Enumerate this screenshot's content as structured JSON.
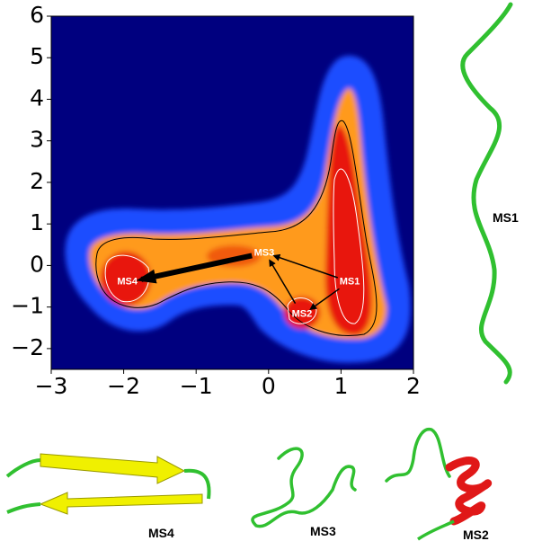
{
  "chart_data": {
    "type": "density",
    "xlim": [
      -3,
      2
    ],
    "xticks": [
      {
        "value": -3,
        "label": "−3"
      },
      {
        "value": -2,
        "label": "−2"
      },
      {
        "value": -1,
        "label": "−1"
      },
      0,
      1,
      2
    ],
    "ylim": [
      -2.5,
      6
    ],
    "yticks": [
      {
        "value": -2,
        "label": "−2"
      },
      {
        "value": -1,
        "label": "−1"
      },
      0,
      1,
      2,
      3,
      4,
      5,
      6
    ],
    "states": [
      {
        "label": "MS1",
        "x": 1.12,
        "y": -0.39
      },
      {
        "label": "MS2",
        "x": 0.46,
        "y": -1.17
      },
      {
        "label": "MS3",
        "x": -0.06,
        "y": 0.3
      },
      {
        "label": "MS4",
        "x": -1.95,
        "y": -0.39
      }
    ],
    "transitions": [
      {
        "from": "MS1",
        "to": "MS3",
        "style": "thin"
      },
      {
        "from": "MS1",
        "to": "MS2",
        "style": "thin"
      },
      {
        "from": "MS2",
        "to": "MS3",
        "style": "thin"
      },
      {
        "from": "MS3",
        "to": "MS4",
        "style": "thick"
      }
    ]
  },
  "structures": [
    "MS1",
    "MS4",
    "MS3",
    "MS2"
  ]
}
